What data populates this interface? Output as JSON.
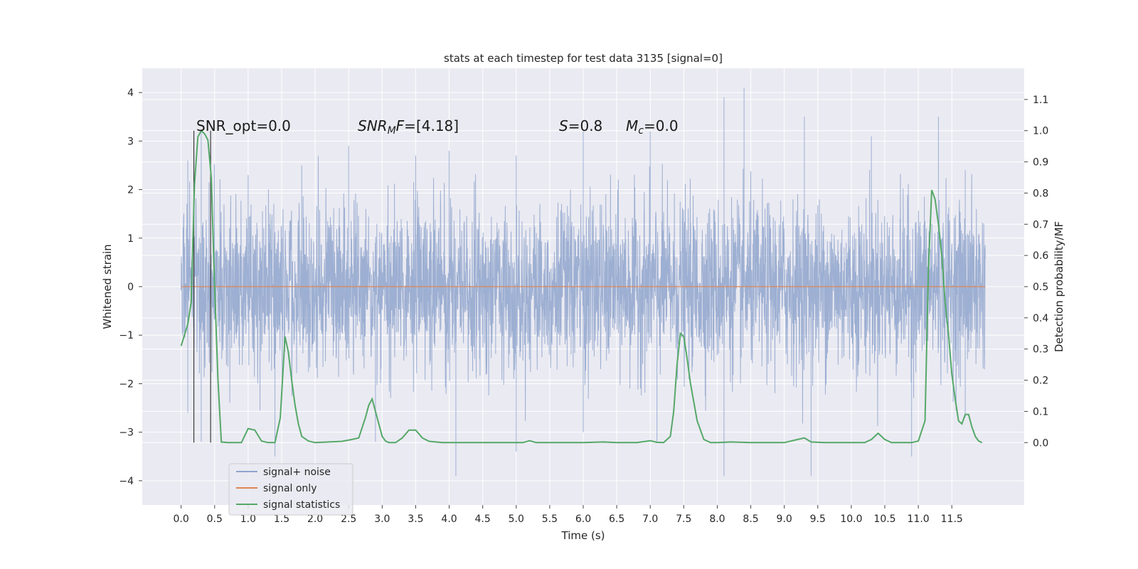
{
  "chart_data": {
    "type": "line",
    "title": "stats at each timestep for test data 3135 [signal=0]",
    "xlabel": "Time (s)",
    "ylabel_left": "Whitened strain",
    "ylabel_right": "Detection probability/MF",
    "xlim": [
      -0.58,
      12.58
    ],
    "ylim_left": [
      -4.5,
      4.5
    ],
    "ylim_right": [
      -0.2,
      1.2
    ],
    "x_ticks": [
      "0.0",
      "0.5",
      "1.0",
      "1.5",
      "2.0",
      "2.5",
      "3.0",
      "3.5",
      "4.0",
      "4.5",
      "5.0",
      "5.5",
      "6.0",
      "6.5",
      "7.0",
      "7.5",
      "8.0",
      "8.5",
      "9.0",
      "9.5",
      "10.0",
      "10.5",
      "11.0",
      "11.5"
    ],
    "y_ticks_left": [
      "4",
      "3",
      "2",
      "1",
      "0",
      "−1",
      "−2",
      "−3",
      "−4"
    ],
    "y_ticks_right": [
      "1.1",
      "1.0",
      "0.9",
      "0.8",
      "0.7",
      "0.6",
      "0.5",
      "0.4",
      "0.3",
      "0.2",
      "0.1",
      "0.0"
    ],
    "grid": true,
    "legend_position": "lower-left",
    "annotations": {
      "snr_opt": "SNR_opt=0.0",
      "snr_mf": "[4.18]",
      "s_value": "0.8",
      "mc_value": "0.0"
    },
    "vertical_lines_x": [
      0.19,
      0.44
    ],
    "series": [
      {
        "name": "signal+ noise",
        "color": "#8fa4cc",
        "description_range": [
          0,
          12
        ],
        "envelope_upper_peaks": [
          [
            0.1,
            2.6
          ],
          [
            0.3,
            3.2
          ],
          [
            1.0,
            2.3
          ],
          [
            1.8,
            2.5
          ],
          [
            2.5,
            2.9
          ],
          [
            3.5,
            2.7
          ],
          [
            4.0,
            2.8
          ],
          [
            5.0,
            2.7
          ],
          [
            6.0,
            3.2
          ],
          [
            7.0,
            3.2
          ],
          [
            8.1,
            3.9
          ],
          [
            8.4,
            4.1
          ],
          [
            9.3,
            3.5
          ],
          [
            10.3,
            3.1
          ],
          [
            11.3,
            3.5
          ],
          [
            11.7,
            2.4
          ]
        ],
        "envelope_lower_peaks": [
          [
            0.1,
            -2.6
          ],
          [
            0.3,
            -3.2
          ],
          [
            1.4,
            -3.5
          ],
          [
            2.9,
            -3.2
          ],
          [
            4.1,
            -3.9
          ],
          [
            5.0,
            -3.4
          ],
          [
            6.0,
            -3.0
          ],
          [
            7.1,
            -3.2
          ],
          [
            8.1,
            -3.9
          ],
          [
            9.4,
            -3.9
          ],
          [
            10.9,
            -3.5
          ],
          [
            11.7,
            -2.7
          ]
        ]
      },
      {
        "name": "signal only",
        "color": "#dd8452",
        "x": [
          0,
          12
        ],
        "y": [
          0,
          0
        ]
      },
      {
        "name": "signal statistics",
        "color": "#55a868",
        "x": [
          0.0,
          0.1,
          0.15,
          0.2,
          0.25,
          0.3,
          0.35,
          0.4,
          0.45,
          0.5,
          0.55,
          0.6,
          0.7,
          0.9,
          1.0,
          1.1,
          1.2,
          1.3,
          1.4,
          1.48,
          1.55,
          1.6,
          1.65,
          1.7,
          1.75,
          1.8,
          1.9,
          2.0,
          2.2,
          2.4,
          2.55,
          2.65,
          2.75,
          2.8,
          2.85,
          2.9,
          2.95,
          3.0,
          3.05,
          3.1,
          3.2,
          3.3,
          3.4,
          3.5,
          3.6,
          3.7,
          3.9,
          4.1,
          4.5,
          4.9,
          5.1,
          5.2,
          5.3,
          5.5,
          6.0,
          6.3,
          6.5,
          6.8,
          7.0,
          7.1,
          7.2,
          7.3,
          7.35,
          7.4,
          7.45,
          7.5,
          7.55,
          7.6,
          7.7,
          7.8,
          7.9,
          8.0,
          8.2,
          8.5,
          9.0,
          9.2,
          9.3,
          9.4,
          9.6,
          10.0,
          10.2,
          10.3,
          10.4,
          10.5,
          10.6,
          10.7,
          10.9,
          11.0,
          11.1,
          11.15,
          11.2,
          11.25,
          11.3,
          11.35,
          11.4,
          11.45,
          11.5,
          11.55,
          11.6,
          11.65,
          11.7,
          11.75,
          11.8,
          11.85,
          11.9,
          11.95
        ],
        "y": [
          0.31,
          0.38,
          0.45,
          0.83,
          0.98,
          1.0,
          0.99,
          0.97,
          0.85,
          0.5,
          0.2,
          0.002,
          0.0,
          0.0,
          0.045,
          0.04,
          0.005,
          0.0,
          0.0,
          0.08,
          0.34,
          0.29,
          0.2,
          0.12,
          0.06,
          0.02,
          0.005,
          0.0,
          0.002,
          0.004,
          0.01,
          0.015,
          0.08,
          0.12,
          0.14,
          0.1,
          0.06,
          0.02,
          0.005,
          0.0,
          0.0,
          0.015,
          0.04,
          0.04,
          0.015,
          0.004,
          0.0,
          0.0,
          0.0,
          0.0,
          0.0,
          0.006,
          0.0,
          0.0,
          0.0,
          0.002,
          0.0,
          0.0,
          0.006,
          0.001,
          0.0,
          0.02,
          0.1,
          0.25,
          0.35,
          0.34,
          0.27,
          0.19,
          0.07,
          0.01,
          0.0,
          0.0,
          0.002,
          0.0,
          0.0,
          0.01,
          0.015,
          0.002,
          0.0,
          0.0,
          0.0,
          0.01,
          0.03,
          0.01,
          0.0,
          0.0,
          0.0,
          0.005,
          0.07,
          0.55,
          0.81,
          0.78,
          0.7,
          0.6,
          0.45,
          0.35,
          0.22,
          0.14,
          0.07,
          0.06,
          0.09,
          0.09,
          0.05,
          0.02,
          0.005,
          0.0
        ]
      }
    ]
  }
}
